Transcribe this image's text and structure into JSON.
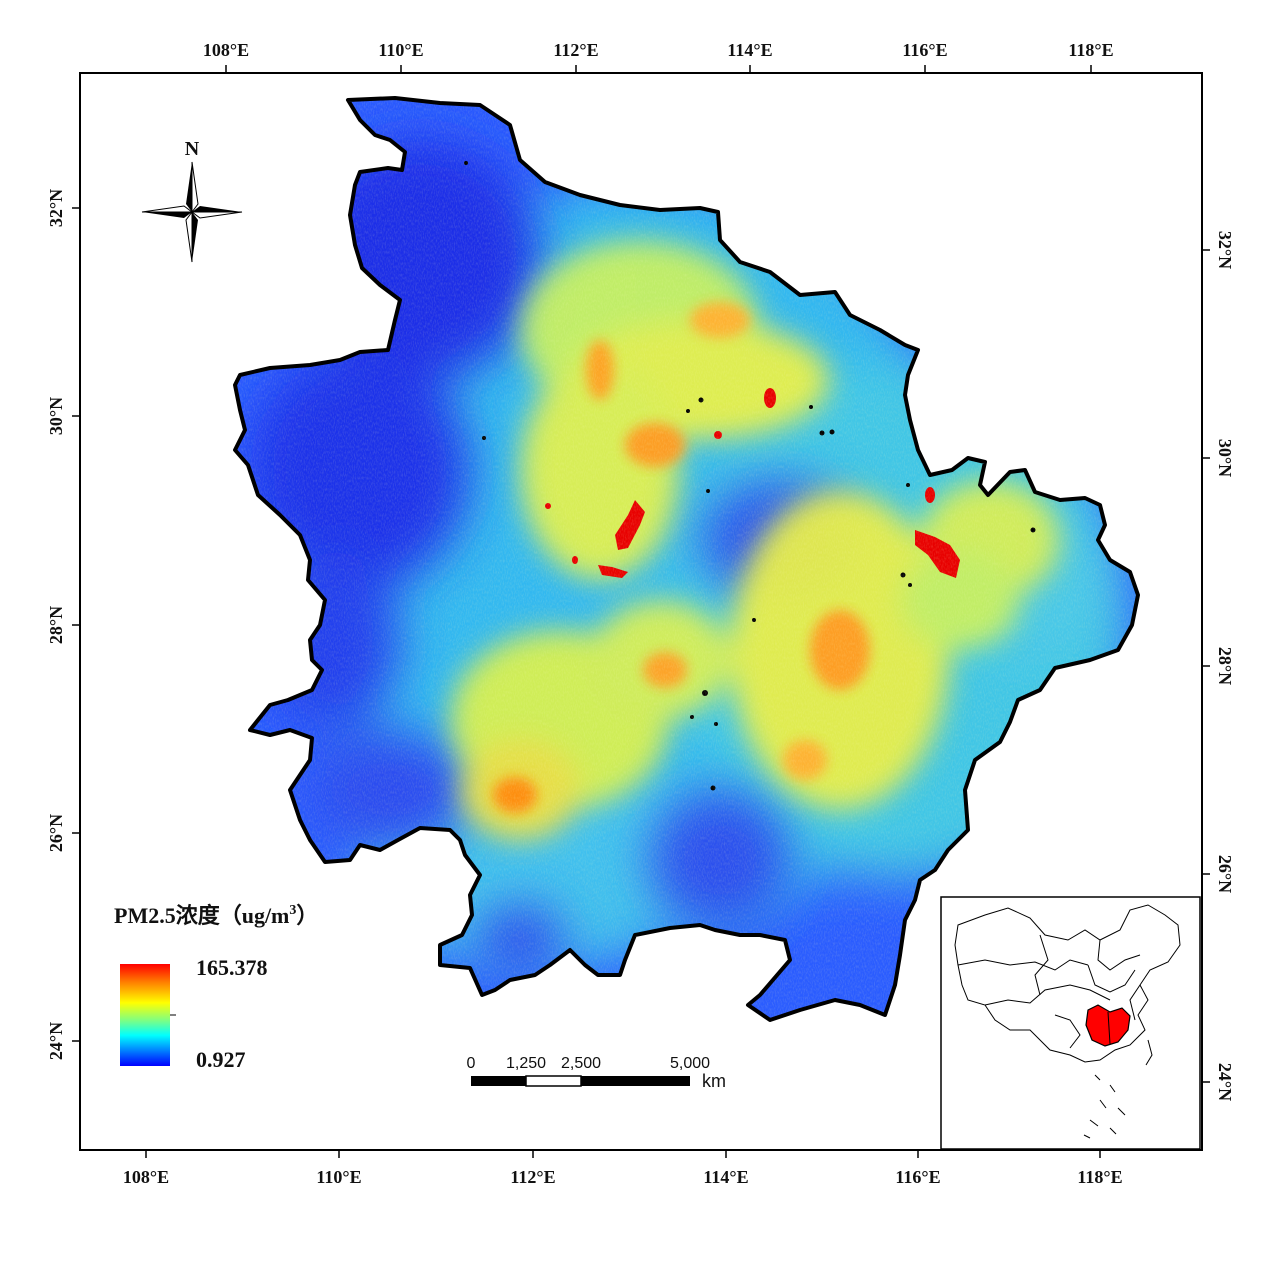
{
  "map": {
    "top_lon_ticks": [
      "108°E",
      "110°E",
      "112°E",
      "114°E",
      "116°E",
      "118°E"
    ],
    "bottom_lon_ticks": [
      "108°E",
      "110°E",
      "112°E",
      "114°E",
      "116°E",
      "118°E"
    ],
    "left_lat_ticks": [
      "32°N",
      "30°N",
      "28°N",
      "26°N",
      "24°N"
    ],
    "right_lat_ticks": [
      "32°N",
      "30°N",
      "28°N",
      "26°N",
      "24°N"
    ]
  },
  "north_arrow": {
    "label": "N",
    "icon": "north-arrow-icon"
  },
  "legend": {
    "title_main": "PM2.5浓度（ug/m",
    "title_sup": "3",
    "title_end": "）",
    "max": "165.378",
    "min": "0.927",
    "colors": [
      "#ff0000",
      "#ff8000",
      "#ffff00",
      "#80ff80",
      "#00ffff",
      "#0080ff",
      "#0000ff"
    ]
  },
  "scale_bar": {
    "labels": [
      "0",
      "1,250",
      "2,500",
      "5,000"
    ],
    "unit": "km"
  },
  "inset": {
    "highlight_color": "#ff0000",
    "icon": "china-inset-map-icon"
  },
  "colors": {
    "low": "#1e3cff",
    "mid": "#ffff40",
    "high": "#ff0000",
    "boundary": "#000000"
  }
}
